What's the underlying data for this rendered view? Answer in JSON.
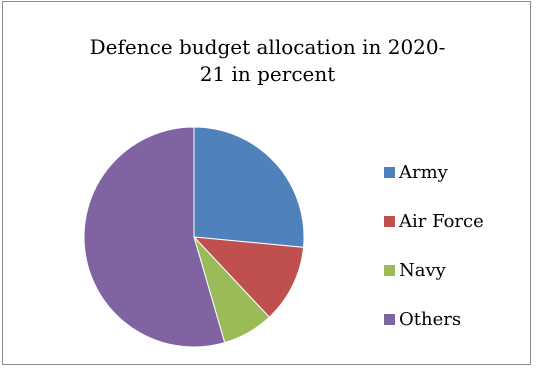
{
  "chart_data": {
    "type": "pie",
    "title_lines": [
      "Defence budget allocation in 2020-",
      "21 in percent"
    ],
    "categories": [
      "Army",
      "Air Force",
      "Navy",
      "Others"
    ],
    "values": [
      26.5,
      11.5,
      7.5,
      54.5
    ],
    "colors": [
      "#4f81bd",
      "#c0504d",
      "#9bbb59",
      "#8064a2"
    ],
    "start": "12 o'clock",
    "direction": "clockwise",
    "legend_position": "right"
  }
}
